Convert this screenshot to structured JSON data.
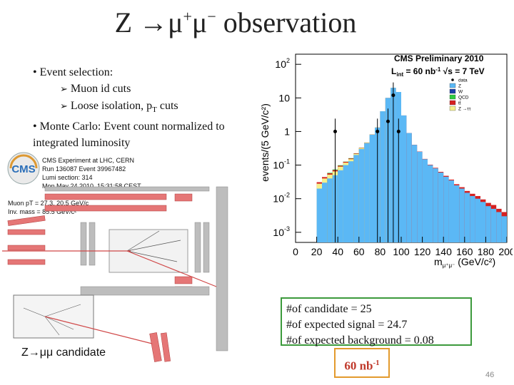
{
  "slide": {
    "title_main": "Z →μ",
    "title_sup1": "+",
    "title_mid": "μ",
    "title_sup2": "−",
    "title_end": " observation",
    "bullets": [
      "• Event selection:",
      "Muon id cuts",
      "Loose isolation, p",
      "T",
      " cuts",
      "• Monte Carlo:  Event count normalized to integrated luminosity"
    ],
    "candidate_label": "Z→μμ candidate",
    "page_number": "46"
  },
  "event_display": {
    "lines": [
      "CMS Experiment at LHC, CERN",
      "Run 136087 Event 39967482",
      "Lumi section: 314",
      "Mon May 24 2010, 15:31:58 CEST",
      "Muon pT = 27.3, 20.5 GeV/c",
      "Inv. mass = 85.5 GeV/c²"
    ],
    "logo_text": "CMS"
  },
  "info_box": {
    "candidates": "#of candidate = 25",
    "signal": "#of expected signal  = 24.7",
    "background": "#of expected background  = 0.08"
  },
  "lumi_box": {
    "value": "60 nb",
    "sup": "-1"
  },
  "chart_data": {
    "type": "bar",
    "title": "CMS Preliminary 2010",
    "subtitle": "L",
    "subtitle_sub": "int",
    "subtitle_rest": " = 60 nb",
    "subtitle_sup": "-1",
    "subtitle_end": " √s = 7 TeV",
    "ylabel": "events/(5 GeV/c²)",
    "xlabel": "m",
    "xlabel_sub": "μ⁺μ⁻",
    "xlabel_end": " (GeV/c²)",
    "log_y": true,
    "xlim": [
      0,
      200
    ],
    "ylim": [
      0.0005,
      200
    ],
    "x_ticks": [
      "0",
      "20",
      "40",
      "60",
      "80",
      "100",
      "120",
      "140",
      "160",
      "180",
      "200"
    ],
    "y_ticks": [
      {
        "base": "10",
        "exp": "2",
        "value": 100
      },
      {
        "base": "10",
        "exp": "",
        "value": 10
      },
      {
        "base": "1",
        "exp": "",
        "value": 1
      },
      {
        "base": "10",
        "exp": "-1",
        "value": 0.1
      },
      {
        "base": "10",
        "exp": "-2",
        "value": 0.01
      },
      {
        "base": "10",
        "exp": "-3",
        "value": 0.001
      }
    ],
    "legend": {
      "placement": "top-right",
      "entries": [
        {
          "label": "data",
          "color": "#000000",
          "kind": "marker"
        },
        {
          "label": "Z",
          "color": "#5bb8f5",
          "kind": "fill"
        },
        {
          "label": "W",
          "color": "#1a3fa8",
          "kind": "fill"
        },
        {
          "label": "QCD",
          "color": "#2ecc40",
          "kind": "fill"
        },
        {
          "label": "tt̄",
          "color": "#d62020",
          "kind": "fill"
        },
        {
          "label": "Z →ττ",
          "color": "#f5f08c",
          "kind": "fill"
        }
      ]
    },
    "bin_width": 5,
    "bin_centers": [
      22.5,
      27.5,
      32.5,
      37.5,
      42.5,
      47.5,
      52.5,
      57.5,
      62.5,
      67.5,
      72.5,
      77.5,
      82.5,
      87.5,
      92.5,
      97.5,
      102.5,
      107.5,
      112.5,
      117.5,
      122.5,
      127.5,
      132.5,
      137.5,
      142.5,
      147.5,
      152.5,
      157.5,
      162.5,
      167.5,
      172.5,
      177.5,
      182.5,
      187.5,
      192.5,
      197.5
    ],
    "series": [
      {
        "name": "Z",
        "color": "#5bb8f5",
        "values": [
          0.02,
          0.03,
          0.04,
          0.05,
          0.07,
          0.1,
          0.13,
          0.2,
          0.3,
          0.45,
          0.8,
          1.3,
          4,
          10,
          20,
          15,
          3,
          0.9,
          0.4,
          0.25,
          0.15,
          0.1,
          0.08,
          0.06,
          0.045,
          0.035,
          0.025,
          0.02,
          0.015,
          0.012,
          0.01,
          0.008,
          0.006,
          0.005,
          0.004,
          0.003
        ]
      },
      {
        "name": "Z →ττ",
        "color": "#f5f08c",
        "values": [
          0.008,
          0.01,
          0.012,
          0.015,
          0.02,
          0.018,
          0.02,
          0.015,
          0.02,
          0.012,
          0.008,
          0.005,
          0.003,
          0.002,
          0.002,
          0.0015,
          0,
          0,
          0,
          0,
          0,
          0,
          0,
          0,
          0,
          0,
          0,
          0,
          0,
          0,
          0,
          0,
          0,
          0,
          0,
          0
        ]
      },
      {
        "name": "tt̄",
        "color": "#d62020",
        "values": [
          0.003,
          0.004,
          0.005,
          0.006,
          0.006,
          0.007,
          0.007,
          0.007,
          0.007,
          0.006,
          0.006,
          0.006,
          0.005,
          0.005,
          0.005,
          0.004,
          0.004,
          0.004,
          0.004,
          0.004,
          0.003,
          0.003,
          0.003,
          0.003,
          0.003,
          0.002,
          0.002,
          0.002,
          0.002,
          0.002,
          0.002,
          0.0015,
          0.0015,
          0.0015,
          0.001,
          0.001
        ]
      },
      {
        "name": "QCD",
        "color": "#2ecc40",
        "values": [
          0,
          0,
          0.002,
          0.003,
          0.003,
          0.002,
          0.004,
          0.002,
          0.002,
          0.002,
          0.001,
          0.001,
          0,
          0,
          0,
          0,
          0,
          0,
          0,
          0,
          0,
          0,
          0,
          0,
          0,
          0,
          0,
          0,
          0,
          0,
          0,
          0,
          0,
          0,
          0,
          0
        ]
      },
      {
        "name": "W",
        "color": "#1a3fa8",
        "values": [
          0,
          0,
          0,
          0,
          0,
          0,
          0,
          0,
          0,
          0,
          0,
          0,
          0,
          0,
          0,
          0,
          0,
          0,
          0,
          0,
          0,
          0,
          0,
          0,
          0,
          0,
          0,
          0,
          0,
          0,
          0,
          0,
          0,
          0,
          0,
          0
        ]
      }
    ],
    "data_points": [
      {
        "x": 37.5,
        "y": 1
      },
      {
        "x": 77.5,
        "y": 1
      },
      {
        "x": 87.5,
        "y": 2
      },
      {
        "x": 92.5,
        "y": 12
      },
      {
        "x": 97.5,
        "y": 1
      }
    ]
  }
}
